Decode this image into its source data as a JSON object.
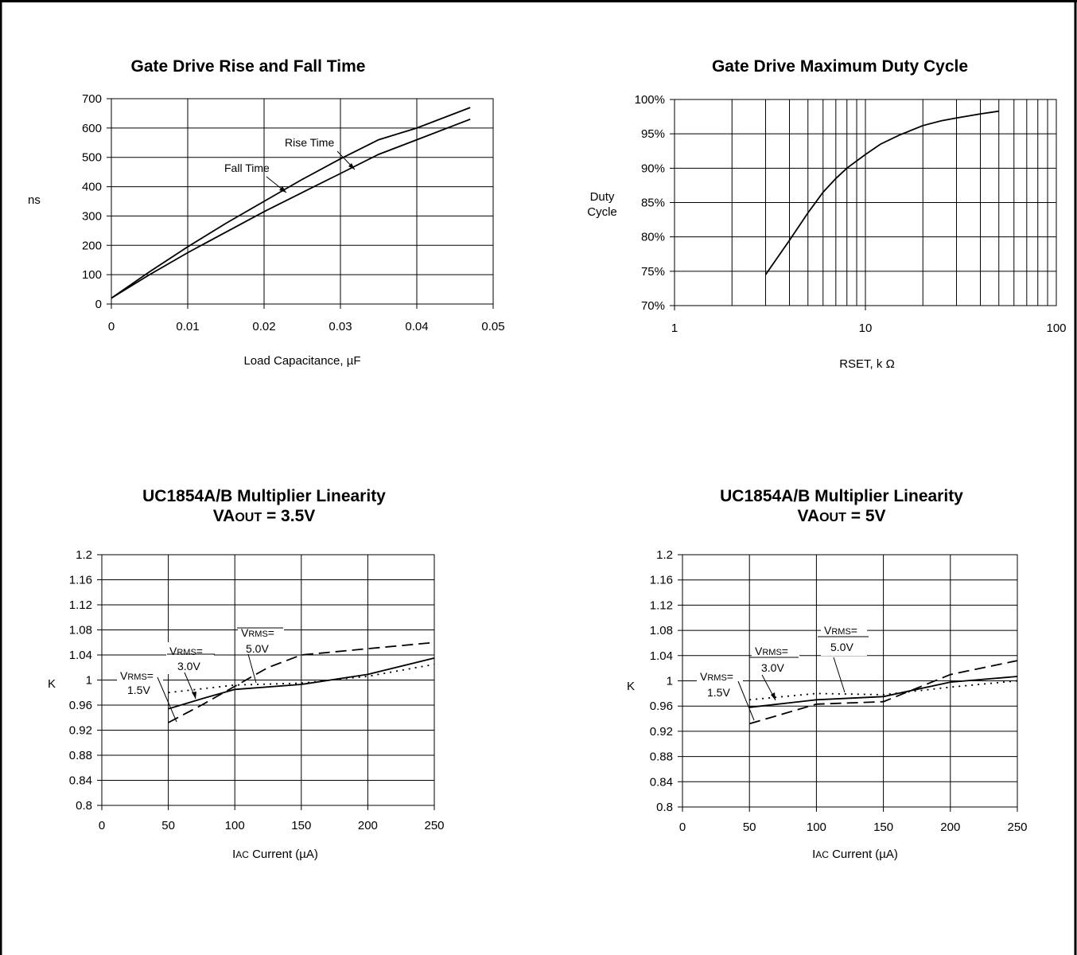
{
  "chart_data": [
    {
      "type": "line",
      "title": "Gate Drive Rise and Fall Time",
      "xlabel": "Load Capacitance, µF",
      "ylabel": "ns",
      "xlim": [
        0,
        0.05
      ],
      "ylim": [
        0,
        700
      ],
      "x_ticks": [
        "0",
        "0.01",
        "0.02",
        "0.03",
        "0.04",
        "0.05"
      ],
      "y_ticks": [
        "0",
        "100",
        "200",
        "300",
        "400",
        "500",
        "600",
        "700"
      ],
      "grid": true,
      "series": [
        {
          "name": "Rise Time",
          "style": "solid",
          "x": [
            0,
            0.005,
            0.01,
            0.015,
            0.02,
            0.025,
            0.03,
            0.035,
            0.04,
            0.047
          ],
          "y": [
            20,
            110,
            195,
            275,
            350,
            425,
            495,
            560,
            600,
            670
          ]
        },
        {
          "name": "Fall Time",
          "style": "solid",
          "x": [
            0,
            0.005,
            0.01,
            0.015,
            0.02,
            0.025,
            0.03,
            0.035,
            0.04,
            0.047
          ],
          "y": [
            20,
            100,
            175,
            245,
            315,
            380,
            445,
            510,
            560,
            630
          ]
        }
      ],
      "annotations": [
        "Rise Time",
        "Fall Time"
      ]
    },
    {
      "type": "line",
      "title": "Gate Drive Maximum Duty Cycle",
      "xlabel": "RSET, k Ω",
      "ylabel": "Duty Cycle",
      "xscale": "log",
      "xlim": [
        1,
        100
      ],
      "ylim": [
        70,
        100
      ],
      "x_ticks": [
        "1",
        "10",
        "100"
      ],
      "y_ticks": [
        "70%",
        "75%",
        "80%",
        "85%",
        "90%",
        "95%",
        "100%"
      ],
      "grid": true,
      "series": [
        {
          "name": "",
          "style": "solid",
          "x": [
            3,
            4,
            5,
            6,
            7,
            8,
            10,
            12,
            15,
            20,
            25,
            30,
            40,
            50
          ],
          "y": [
            74.5,
            79.5,
            83.5,
            86.5,
            88.5,
            90,
            92,
            93.5,
            94.8,
            96.2,
            96.9,
            97.3,
            97.9,
            98.3
          ]
        }
      ]
    },
    {
      "type": "line",
      "title": "UC1854A/B Multiplier Linearity",
      "subtitle_pre": "VA",
      "subtitle_sc": "OUT",
      "subtitle_post": " = 3.5V",
      "xlabel_pre": "I",
      "xlabel_sc": "AC",
      "xlabel_post": " Current (µA)",
      "ylabel": "K",
      "xlim": [
        0,
        250
      ],
      "ylim": [
        0.8,
        1.2
      ],
      "x_ticks": [
        "0",
        "50",
        "100",
        "150",
        "200",
        "250"
      ],
      "y_ticks": [
        "0.8",
        "0.84",
        "0.88",
        "0.92",
        "0.96",
        "1",
        "1.04",
        "1.08",
        "1.12",
        "1.16",
        "1.2"
      ],
      "grid": true,
      "series": [
        {
          "name": "1.5V",
          "style": "solid",
          "x": [
            50,
            75,
            100,
            150,
            200,
            250
          ],
          "y": [
            0.954,
            0.97,
            0.985,
            0.993,
            1.009,
            1.035
          ]
        },
        {
          "name": "3.0V",
          "style": "dotted",
          "x": [
            50,
            100,
            150,
            200,
            250
          ],
          "y": [
            0.98,
            0.992,
            0.995,
            1.006,
            1.025
          ]
        },
        {
          "name": "5.0V",
          "style": "dashed",
          "x": [
            50,
            75,
            100,
            125,
            150,
            200,
            250
          ],
          "y": [
            0.932,
            0.96,
            0.99,
            1.02,
            1.04,
            1.05,
            1.06
          ]
        }
      ],
      "annotations": [
        {
          "pre": "V",
          "sc": "RMS",
          "post": "=",
          "value": "1.5V"
        },
        {
          "pre": "V",
          "sc": "RMS",
          "post": "=",
          "value": "3.0V"
        },
        {
          "pre": "V",
          "sc": "RMS",
          "post": "=",
          "value": "5.0V"
        }
      ]
    },
    {
      "type": "line",
      "title": "UC1854A/B Multiplier Linearity",
      "subtitle_pre": "VA",
      "subtitle_sc": "OUT",
      "subtitle_post": " = 5V",
      "xlabel_pre": "I",
      "xlabel_sc": "AC",
      "xlabel_post": " Current (µA)",
      "ylabel": "K",
      "xlim": [
        0,
        250
      ],
      "ylim": [
        0.8,
        1.2
      ],
      "x_ticks": [
        "0",
        "50",
        "100",
        "150",
        "200",
        "250"
      ],
      "y_ticks": [
        "0.8",
        "0.84",
        "0.88",
        "0.92",
        "0.96",
        "1",
        "1.04",
        "1.08",
        "1.12",
        "1.16",
        "1.2"
      ],
      "grid": true,
      "series": [
        {
          "name": "1.5V",
          "style": "solid",
          "x": [
            50,
            100,
            150,
            200,
            250
          ],
          "y": [
            0.958,
            0.97,
            0.975,
            0.998,
            1.007
          ]
        },
        {
          "name": "3.0V",
          "style": "dotted",
          "x": [
            50,
            100,
            150,
            200,
            250
          ],
          "y": [
            0.97,
            0.98,
            0.978,
            0.99,
            1.0
          ]
        },
        {
          "name": "5.0V",
          "style": "dashed",
          "x": [
            50,
            100,
            150,
            200,
            250
          ],
          "y": [
            0.932,
            0.963,
            0.967,
            1.01,
            1.032
          ]
        }
      ],
      "annotations": [
        {
          "pre": "V",
          "sc": "RMS",
          "post": "=",
          "value": "1.5V"
        },
        {
          "pre": "V",
          "sc": "RMS",
          "post": "=",
          "value": "3.0V"
        },
        {
          "pre": "V",
          "sc": "RMS",
          "post": "=",
          "value": "5.0V"
        }
      ]
    }
  ]
}
